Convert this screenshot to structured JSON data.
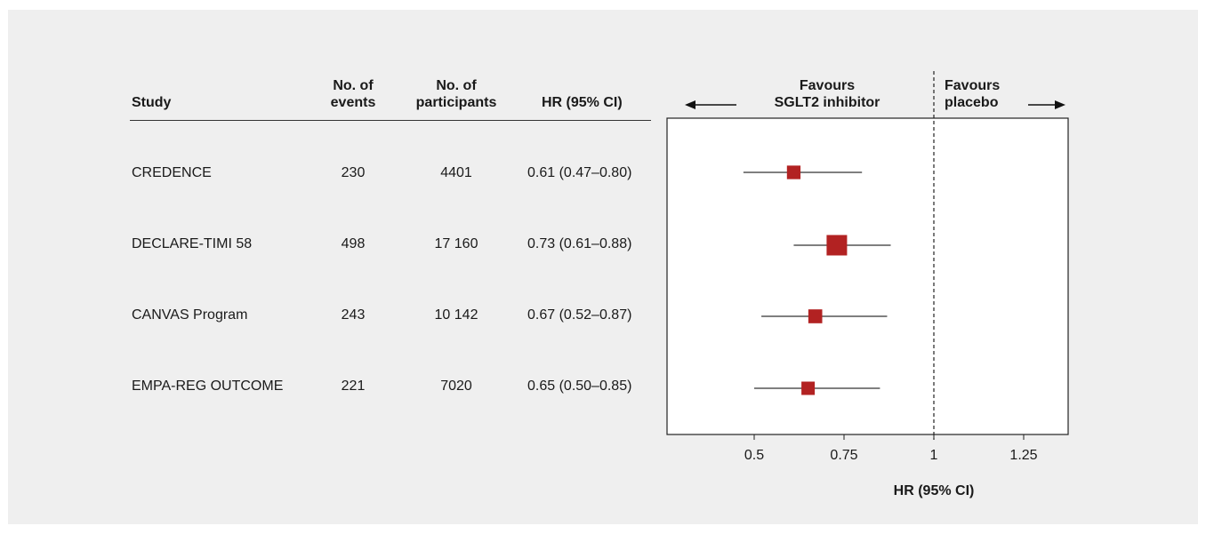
{
  "table": {
    "headers": {
      "study": "Study",
      "events": [
        "No. of",
        "events"
      ],
      "participants": [
        "No. of",
        "participants"
      ],
      "hr": "HR (95% CI)"
    },
    "rows": [
      {
        "study": "CREDENCE",
        "events": "230",
        "participants": "4401",
        "hr": "0.61 (0.47–0.80)"
      },
      {
        "study": "DECLARE-TIMI 58",
        "events": "498",
        "participants": "17 160",
        "hr": "0.73 (0.61–0.88)"
      },
      {
        "study": "CANVAS Program",
        "events": "243",
        "participants": "10 142",
        "hr": "0.67 (0.52–0.87)"
      },
      {
        "study": "EMPA-REG OUTCOME",
        "events": "221",
        "participants": "7020",
        "hr": "0.65 (0.50–0.85)"
      }
    ]
  },
  "plot": {
    "favours_left": [
      "Favours",
      "SGLT2 inhibitor"
    ],
    "favours_right": [
      "Favours",
      "placebo"
    ]
  },
  "chart_data": {
    "type": "scatter",
    "subtype": "forest-plot",
    "xlabel": "HR (95% CI)",
    "x_ticks": [
      0.5,
      0.75,
      1,
      1.25
    ],
    "x_tick_labels": [
      "0.5",
      "0.75",
      "1",
      "1.25"
    ],
    "xlim": [
      0.25,
      1.5
    ],
    "reference_line": 1,
    "marker_color": "#b22222",
    "series": [
      {
        "study": "CREDENCE",
        "hr": 0.61,
        "ci": [
          0.47,
          0.8
        ],
        "weight": 230
      },
      {
        "study": "DECLARE-TIMI 58",
        "hr": 0.73,
        "ci": [
          0.61,
          0.88
        ],
        "weight": 498
      },
      {
        "study": "CANVAS Program",
        "hr": 0.67,
        "ci": [
          0.52,
          0.87
        ],
        "weight": 243
      },
      {
        "study": "EMPA-REG OUTCOME",
        "hr": 0.65,
        "ci": [
          0.5,
          0.85
        ],
        "weight": 221
      }
    ]
  }
}
